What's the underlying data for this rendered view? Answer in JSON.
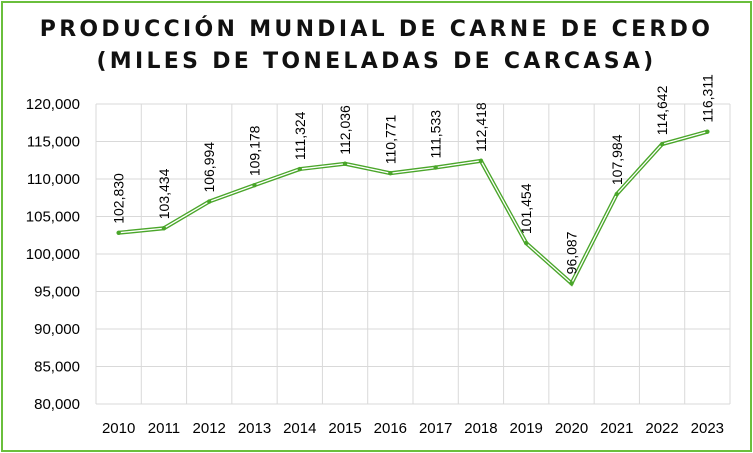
{
  "chart_data": {
    "type": "line",
    "title": "PRODUCCIÓN MUNDIAL DE CARNE DE CERDO",
    "subtitle": "(MILES DE TONELADAS DE CARCASA)",
    "xlabel": "",
    "ylabel": "",
    "categories": [
      "2010",
      "2011",
      "2012",
      "2013",
      "2014",
      "2015",
      "2016",
      "2017",
      "2018",
      "2019",
      "2020",
      "2021",
      "2022",
      "2023"
    ],
    "values": [
      102830,
      103434,
      106994,
      109178,
      111324,
      112036,
      110771,
      111533,
      112418,
      101454,
      96087,
      107984,
      114642,
      116311
    ],
    "data_labels": [
      "102,830",
      "103,434",
      "106,994",
      "109,178",
      "111,324",
      "112,036",
      "110,771",
      "111,533",
      "112,418",
      "101,454",
      "96,087",
      "107,984",
      "114,642",
      "116,311"
    ],
    "ylim": [
      80000,
      120000
    ],
    "yticks": [
      80000,
      85000,
      90000,
      95000,
      100000,
      105000,
      110000,
      115000,
      120000
    ],
    "ytick_labels": [
      "80,000",
      "85,000",
      "90,000",
      "95,000",
      "100,000",
      "105,000",
      "110,000",
      "115,000",
      "120,000"
    ],
    "grid": true,
    "legend": "none",
    "colors": {
      "line": "#4aa62a",
      "frame": "#6abf3c",
      "grid": "#d9d9d9"
    }
  }
}
